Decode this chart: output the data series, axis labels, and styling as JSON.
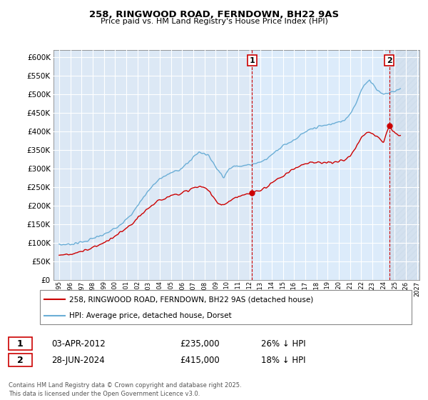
{
  "title": "258, RINGWOOD ROAD, FERNDOWN, BH22 9AS",
  "subtitle": "Price paid vs. HM Land Registry's House Price Index (HPI)",
  "hpi_color": "#6baed6",
  "price_color": "#cc0000",
  "background_color": "#ffffff",
  "plot_bg_color": "#dce8f5",
  "grid_color": "#ffffff",
  "shade_color": "#d0e4f5",
  "hatch_color": "#c0d0e0",
  "ylim": [
    0,
    620000
  ],
  "xlim_start": 1994.5,
  "xlim_end": 2027.2,
  "yticks": [
    0,
    50000,
    100000,
    150000,
    200000,
    250000,
    300000,
    350000,
    400000,
    450000,
    500000,
    550000,
    600000
  ],
  "xticks": [
    1995,
    1996,
    1997,
    1998,
    1999,
    2000,
    2001,
    2002,
    2003,
    2004,
    2005,
    2006,
    2007,
    2008,
    2009,
    2010,
    2011,
    2012,
    2013,
    2014,
    2015,
    2016,
    2017,
    2018,
    2019,
    2020,
    2021,
    2022,
    2023,
    2024,
    2025,
    2026,
    2027
  ],
  "legend_label_price": "258, RINGWOOD ROAD, FERNDOWN, BH22 9AS (detached house)",
  "legend_label_hpi": "HPI: Average price, detached house, Dorset",
  "annotation1_label": "1",
  "annotation2_label": "2",
  "vline1_x": 2012.25,
  "vline2_x": 2024.5,
  "point1_x": 2012.25,
  "point1_y": 235000,
  "point2_x": 2024.5,
  "point2_y": 415000,
  "table_data": [
    {
      "num": "1",
      "date": "03-APR-2012",
      "price": "£235,000",
      "pct": "26% ↓ HPI"
    },
    {
      "num": "2",
      "date": "28-JUN-2024",
      "price": "£415,000",
      "pct": "18% ↓ HPI"
    }
  ],
  "footer": "Contains HM Land Registry data © Crown copyright and database right 2025.\nThis data is licensed under the Open Government Licence v3.0."
}
